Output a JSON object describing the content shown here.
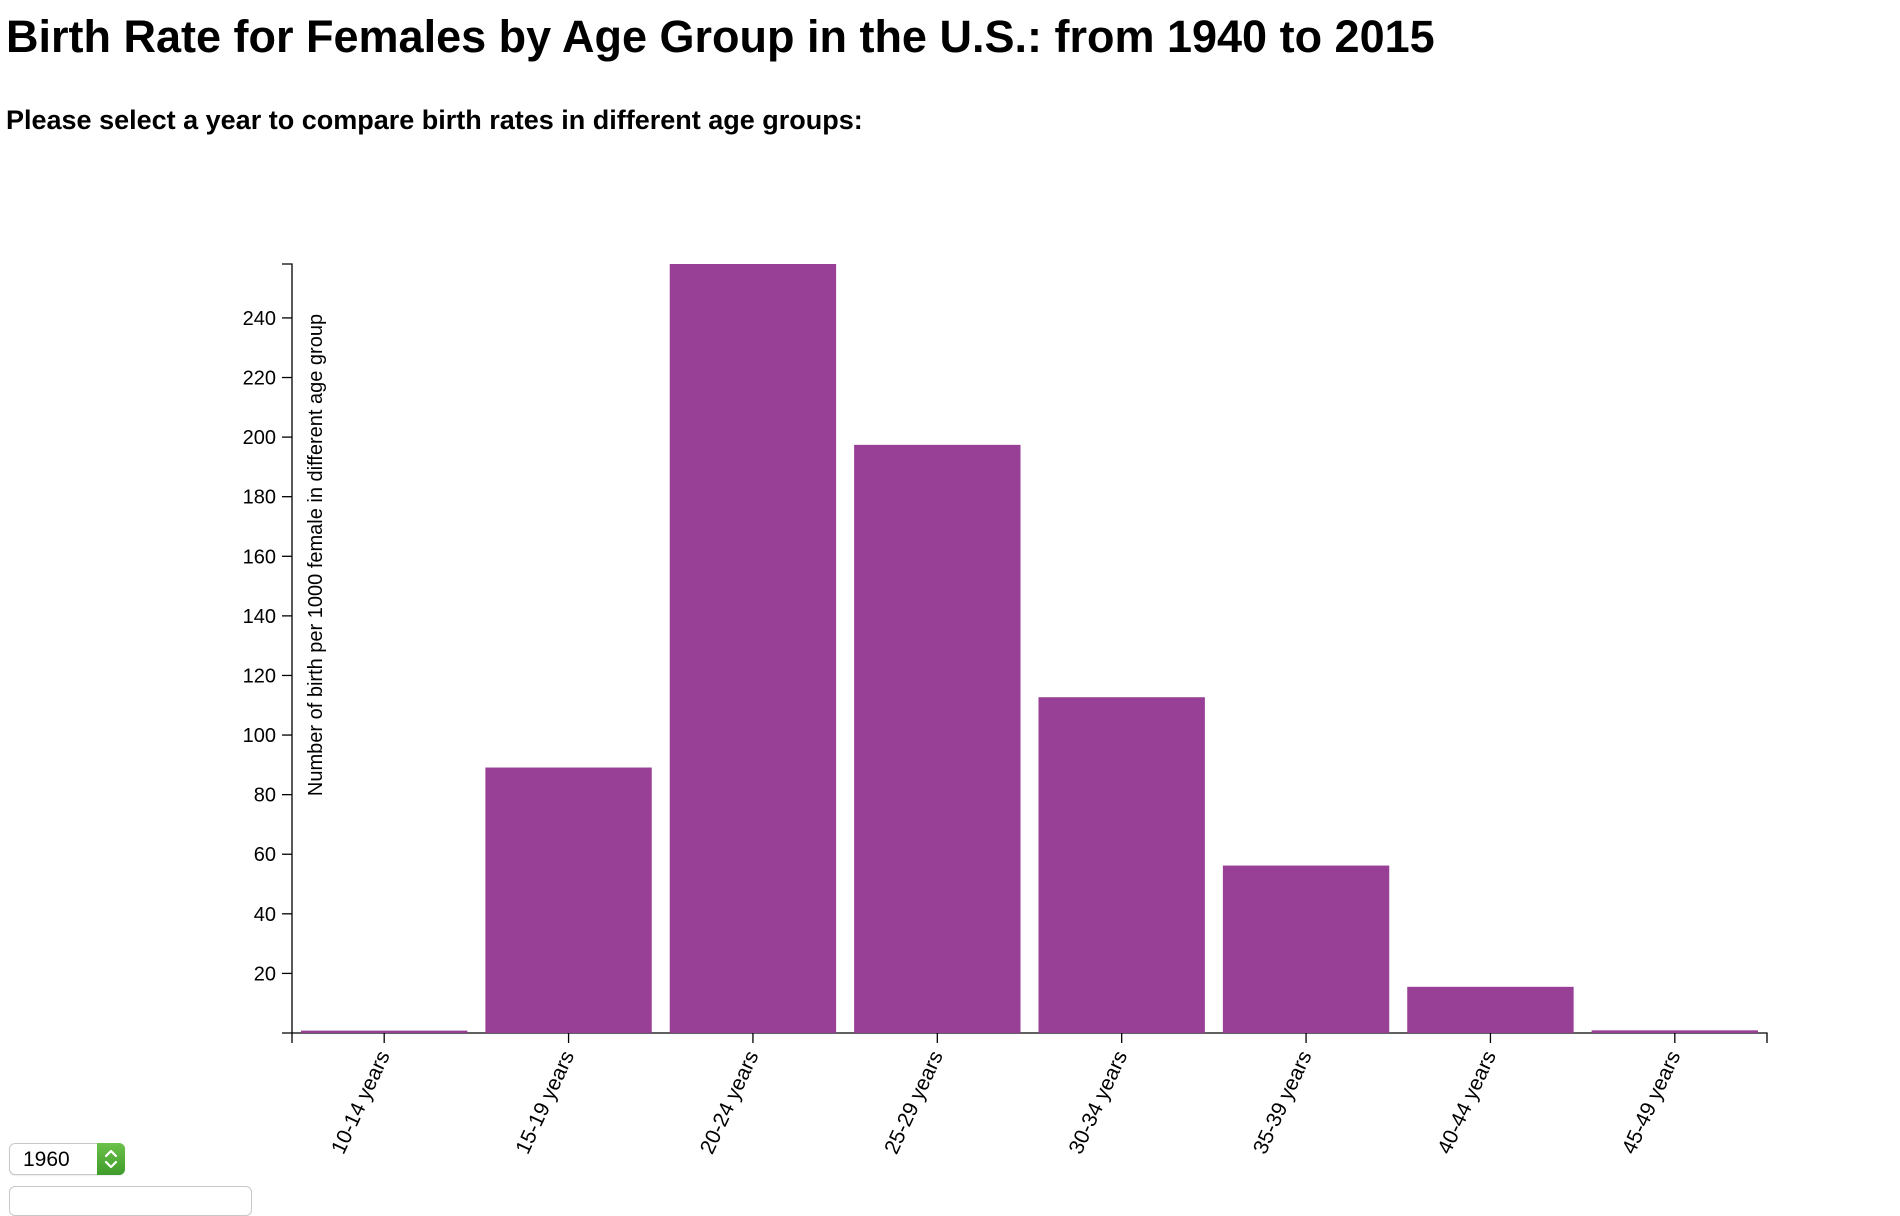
{
  "page": {
    "title": "Birth Rate for Females by Age Group in the U.S.: from 1940 to 2015",
    "subtitle": "Please select a year to compare birth rates in different age groups:"
  },
  "controls": {
    "year_select": {
      "selected": "1960",
      "icon": "updown-chevron-icon"
    }
  },
  "colors": {
    "bar": "#983f96",
    "axis": "#000000"
  },
  "chart_data": {
    "type": "bar",
    "title": "",
    "xlabel": "",
    "ylabel": "Number of birth per 1000 female in different age group",
    "categories": [
      "10-14 years",
      "15-19 years",
      "20-24 years",
      "25-29 years",
      "30-34 years",
      "35-39 years",
      "40-44 years",
      "45-49 years"
    ],
    "values": [
      0.8,
      89.1,
      258.1,
      197.4,
      112.7,
      56.2,
      15.5,
      0.9
    ],
    "ylim": [
      0,
      258.1
    ],
    "yticks": [
      20,
      40,
      60,
      80,
      100,
      120,
      140,
      160,
      180,
      200,
      220,
      240
    ],
    "grid": false,
    "legend": "none"
  }
}
